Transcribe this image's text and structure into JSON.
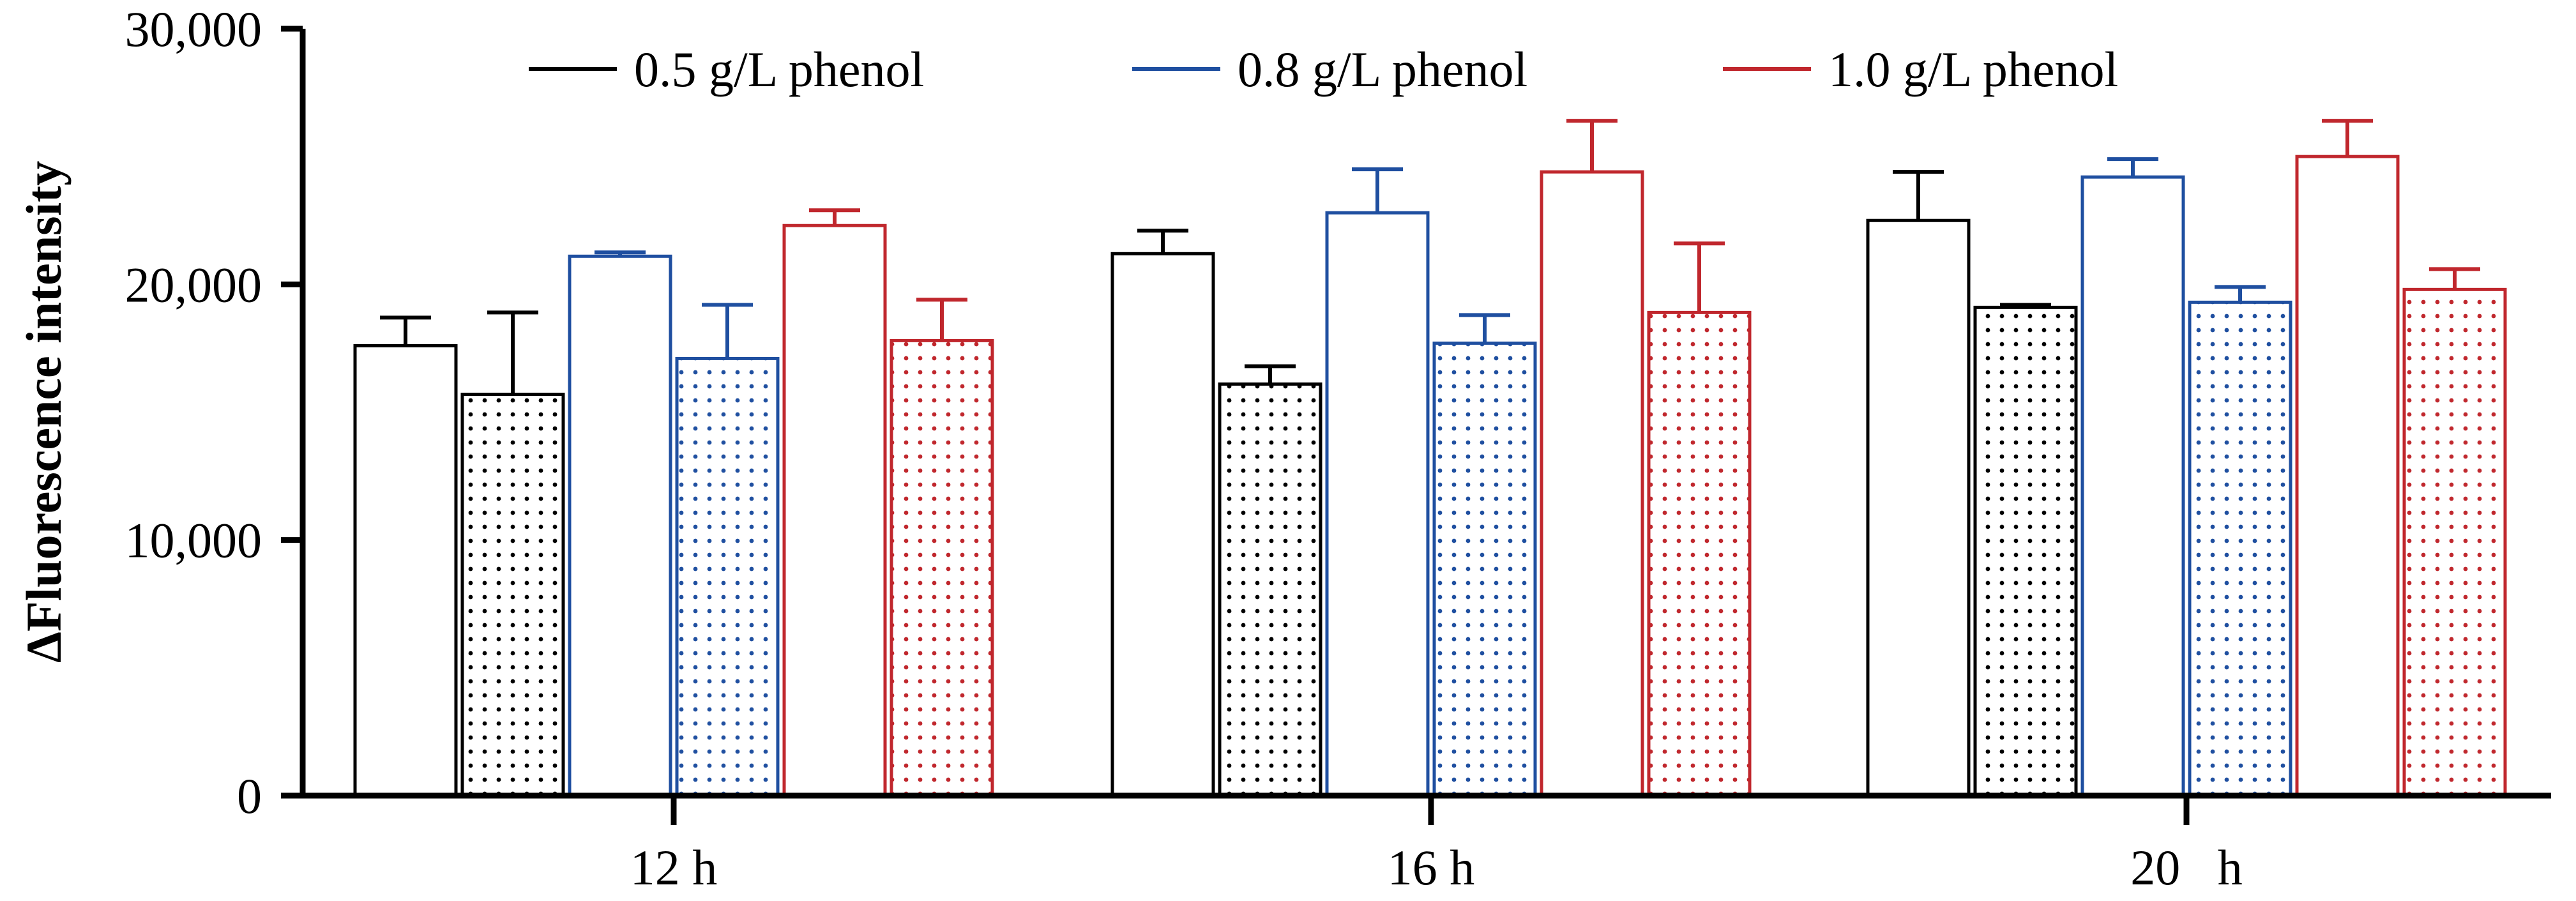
{
  "chart_data": {
    "type": "bar",
    "title": "",
    "xlabel": "",
    "ylabel": "ΔFluorescence intensity",
    "ylim": [
      0,
      30000
    ],
    "yticks": [
      0,
      10000,
      20000,
      30000
    ],
    "ytick_labels": [
      "0",
      "10,000",
      "20,000",
      "30,000"
    ],
    "categories": [
      "12 h",
      "16 h",
      "20   h"
    ],
    "legend_position": "top",
    "legend": [
      {
        "label": "0.5 g/L phenol",
        "color": "#000000"
      },
      {
        "label": "0.8 g/L phenol",
        "color": "#1f4fa0"
      },
      {
        "label": "1.0 g/L phenol",
        "color": "#c0272d"
      }
    ],
    "series": [
      {
        "name": "0.5 g/L phenol (open)",
        "concentration": "0.5 g/L phenol",
        "fill": "none",
        "color": "#000000",
        "values": [
          17600,
          21200,
          22500
        ],
        "errors": [
          1100,
          900,
          1900
        ]
      },
      {
        "name": "0.5 g/L phenol (dotted)",
        "concentration": "0.5 g/L phenol",
        "fill": "dotted",
        "color": "#000000",
        "values": [
          15700,
          16100,
          19100
        ],
        "errors": [
          3200,
          700,
          100
        ]
      },
      {
        "name": "0.8 g/L phenol (open)",
        "concentration": "0.8 g/L phenol",
        "fill": "none",
        "color": "#1f4fa0",
        "values": [
          21100,
          22800,
          24200
        ],
        "errors": [
          150,
          1700,
          700
        ]
      },
      {
        "name": "0.8 g/L phenol (dotted)",
        "concentration": "0.8 g/L phenol",
        "fill": "dotted",
        "color": "#1f4fa0",
        "values": [
          17100,
          17700,
          19300
        ],
        "errors": [
          2100,
          1100,
          600
        ]
      },
      {
        "name": "1.0 g/L phenol (open)",
        "concentration": "1.0 g/L phenol",
        "fill": "none",
        "color": "#c0272d",
        "values": [
          22300,
          24400,
          25000
        ],
        "errors": [
          600,
          2000,
          1400
        ]
      },
      {
        "name": "1.0 g/L phenol (dotted)",
        "concentration": "1.0 g/L phenol",
        "fill": "dotted",
        "color": "#c0272d",
        "values": [
          17800,
          18900,
          19800
        ],
        "errors": [
          1600,
          2700,
          800
        ]
      }
    ]
  }
}
